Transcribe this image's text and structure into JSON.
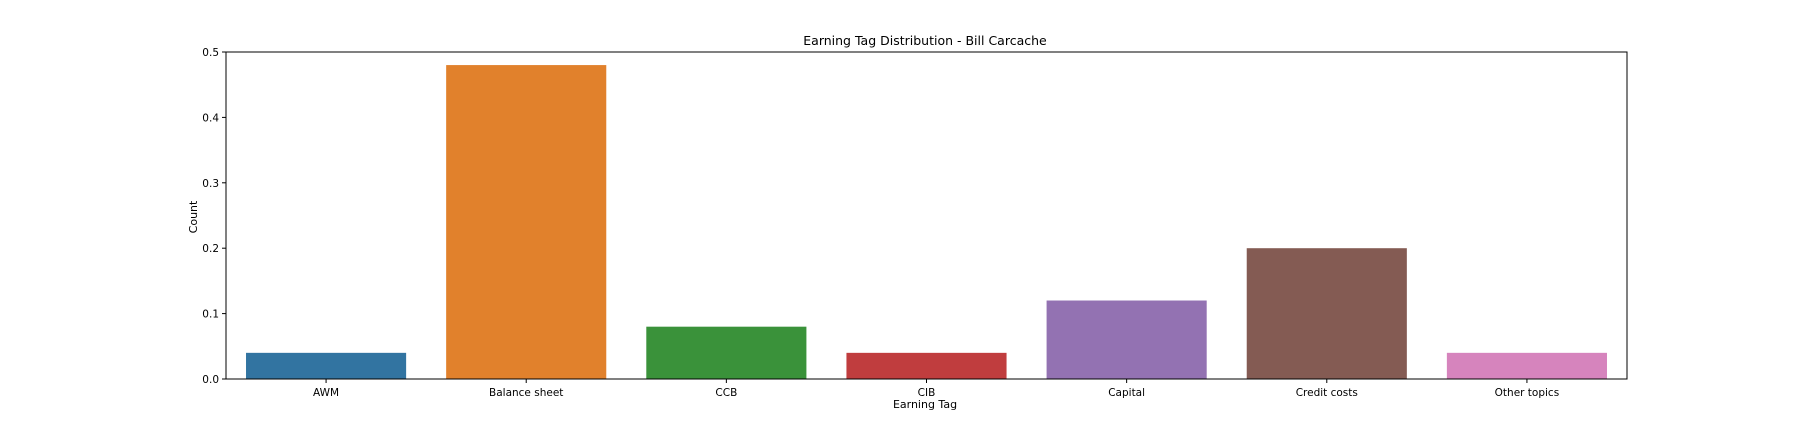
{
  "chart_data": {
    "type": "bar",
    "title": "Earning Tag Distribution - Bill Carcache",
    "xlabel": "Earning Tag",
    "ylabel": "Count",
    "categories": [
      "AWM",
      "Balance sheet",
      "CCB",
      "CIB",
      "Capital",
      "Credit costs",
      "Other topics"
    ],
    "values": [
      0.04,
      0.48,
      0.08,
      0.04,
      0.12,
      0.2,
      0.04
    ],
    "colors": [
      "#3274a1",
      "#e1812c",
      "#3a923a",
      "#c03d3e",
      "#9372b2",
      "#845b53",
      "#d684bd"
    ],
    "ylim": [
      0,
      0.5
    ],
    "yticks": [
      0.0,
      0.1,
      0.2,
      0.3,
      0.4,
      0.5
    ],
    "ytick_labels": [
      "0.0",
      "0.1",
      "0.2",
      "0.3",
      "0.4",
      "0.5"
    ],
    "grid": false,
    "legend": "none"
  }
}
